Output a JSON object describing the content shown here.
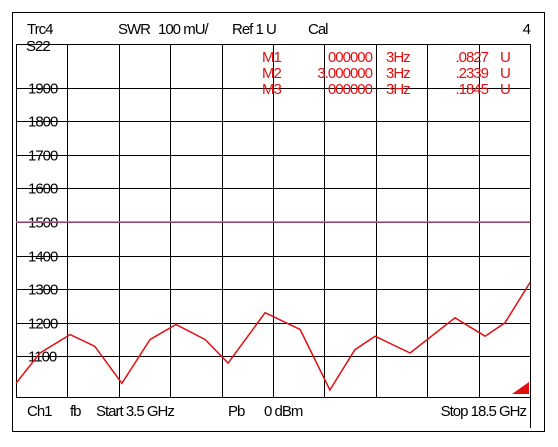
{
  "header": {
    "trace": "Trc4",
    "format": "SWR",
    "scale": "100 mU/",
    "ref": "Ref 1 U",
    "cal": "Cal",
    "channel_number": "4"
  },
  "trace_label": "S22",
  "markers": [
    {
      "name": "M1",
      "frequency": "000000",
      "unit": "3Hz",
      "value": ".0827",
      "value_unit": "U"
    },
    {
      "name": "M2",
      "frequency": "3.000000",
      "unit": "3Hz",
      "value": ".2339",
      "value_unit": "U"
    },
    {
      "name": "M3",
      "frequency": "000000",
      "unit": "3Hz",
      "value": ".1845",
      "value_unit": "U"
    }
  ],
  "footer": {
    "channel": "Ch1",
    "fb": "fb",
    "start": "Start 3.5 GHz",
    "pb": "Pb",
    "power": "0 dBm",
    "stop": "Stop 18.5 GHz"
  },
  "chart_data": {
    "type": "line",
    "x": [
      3.5,
      4.2,
      5.08,
      5.8,
      6.59,
      7.41,
      8.17,
      9.02,
      9.69,
      10.77,
      11.79,
      12.66,
      13.39,
      13.98,
      15.0,
      16.31,
      17.19,
      17.77,
      18.5
    ],
    "series": [
      {
        "name": "S22",
        "color": "#e01010",
        "values": [
          1020,
          1110,
          1165,
          1130,
          1020,
          1150,
          1195,
          1150,
          1080,
          1230,
          1180,
          1000,
          1120,
          1160,
          1110,
          1215,
          1160,
          1200,
          1320
        ]
      }
    ],
    "xlim": [
      3.5,
      18.5
    ],
    "xticks": [
      3.5,
      5,
      6.5,
      8,
      9.5,
      11,
      12.5,
      14,
      15.5,
      17,
      18.5
    ],
    "ylim": [
      1000,
      2000
    ],
    "yticks": [
      1100,
      1200,
      1300,
      1400,
      1500,
      1600,
      1700,
      1800,
      1900
    ],
    "reference_line": 1500,
    "reference_color": "#c06090",
    "grid": true
  }
}
